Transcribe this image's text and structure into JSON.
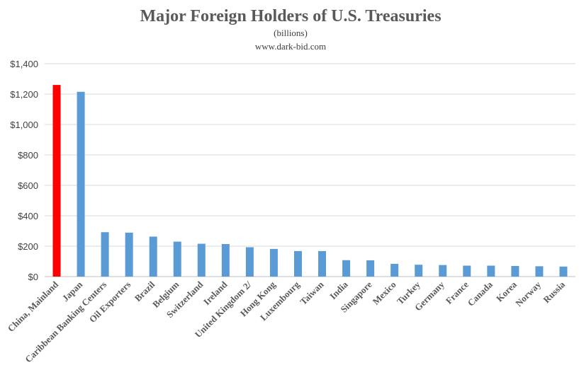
{
  "chart_data": {
    "type": "bar",
    "title": "Major Foreign Holders of U.S. Treasuries",
    "subtitle": "(billions)",
    "source": "www.dark-bid.com",
    "xlabel": "",
    "ylabel": "",
    "ylim": [
      0,
      1400
    ],
    "yticks": [
      0,
      200,
      400,
      600,
      800,
      1000,
      1200,
      1400
    ],
    "ytick_labels": [
      "$0",
      "$200",
      "$400",
      "$600",
      "$800",
      "$1,000",
      "$1,200",
      "$1,400"
    ],
    "grid": true,
    "legend": "none",
    "categories": [
      "China, Mainland",
      "Japan",
      "Caribbean Banking Centers",
      "Oil Exporters",
      "Brazil",
      "Belgium",
      "Switzerland",
      "Ireland",
      "United Kingdom 2/",
      "Hong Kong",
      "Luxembourg",
      "Taiwan",
      "India",
      "Singapore",
      "Mexico",
      "Turkey",
      "Germany",
      "France",
      "Canada",
      "Korea",
      "Norway",
      "Russia"
    ],
    "values": [
      1260,
      1215,
      292,
      289,
      263,
      230,
      216,
      214,
      193,
      182,
      168,
      168,
      108,
      107,
      84,
      78,
      76,
      72,
      72,
      70,
      68,
      66
    ],
    "colors": {
      "highlight": "#ff0000",
      "default": "#5b9bd5"
    },
    "highlight_index": 0
  }
}
